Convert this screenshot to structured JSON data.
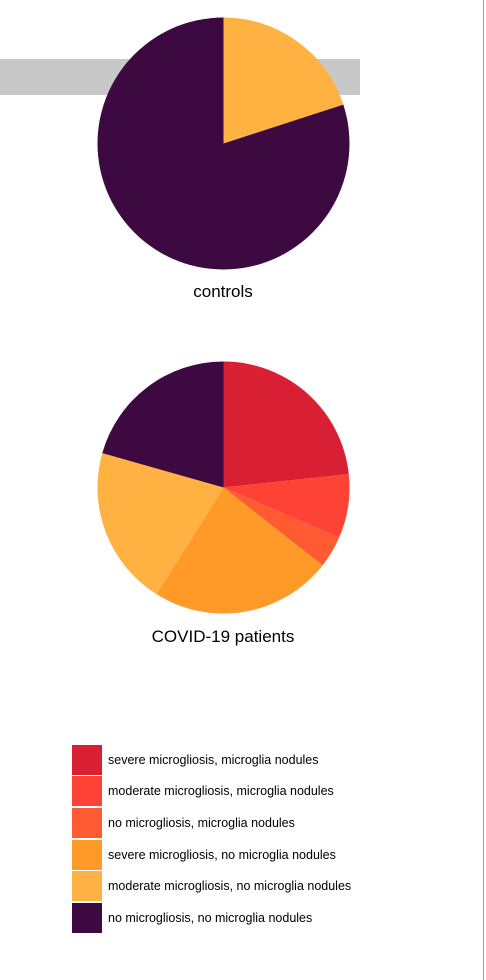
{
  "chart_data": [
    {
      "type": "pie",
      "title": "controls",
      "categories": [
        "severe microgliosis, microglia nodules",
        "moderate microgliosis, microglia nodules",
        "no microgliosis, microglia nodules",
        "severe microgliosis, no microglia nodules",
        "moderate microgliosis, no microglia nodules",
        "no microgliosis, no microglia nodules"
      ],
      "values": [
        0,
        0,
        0,
        0,
        20,
        80
      ],
      "colors": [
        "#d91f33",
        "#ff4236",
        "#ff5a32",
        "#ff9a28",
        "#ffb142",
        "#3c0a40"
      ]
    },
    {
      "type": "pie",
      "title": "COVID-19 patients",
      "categories": [
        "severe microgliosis, microglia nodules",
        "moderate microgliosis, microglia nodules",
        "no microgliosis, microglia nodules",
        "severe microgliosis, no microglia nodules",
        "moderate microgliosis, no microglia nodules",
        "no microgliosis, no microglia nodules"
      ],
      "values": [
        23.3,
        8.2,
        4.1,
        23.3,
        20.5,
        20.6
      ],
      "colors": [
        "#d91f33",
        "#ff4236",
        "#ff5a32",
        "#ff9a28",
        "#ffb142",
        "#3c0a40"
      ]
    }
  ],
  "legend": {
    "items": [
      {
        "label": "severe microgliosis, microglia nodules",
        "color": "#d91f33"
      },
      {
        "label": "moderate microgliosis, microglia nodules",
        "color": "#ff4236"
      },
      {
        "label": "no microgliosis, microglia nodules",
        "color": "#ff5a32"
      },
      {
        "label": "severe microgliosis, no microglia nodules",
        "color": "#ff9a28"
      },
      {
        "label": "moderate microgliosis, no microglia nodules",
        "color": "#ffb142"
      },
      {
        "label": "no microgliosis, no microglia nodules",
        "color": "#3c0a40"
      }
    ]
  }
}
